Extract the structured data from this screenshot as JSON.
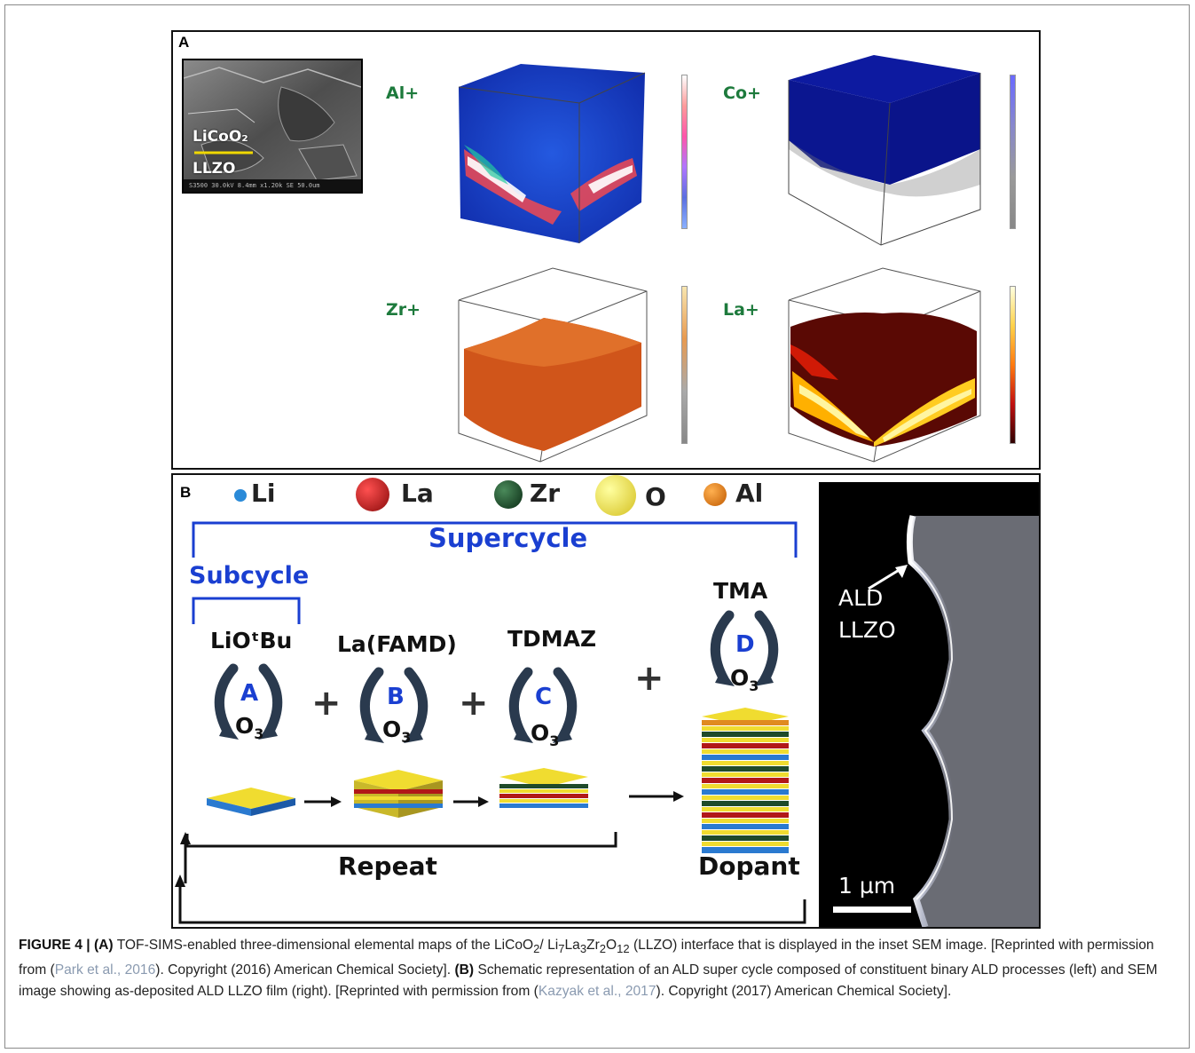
{
  "panel_a": {
    "letter": "A",
    "sem_inset": {
      "layer_top": "LiCoO₂",
      "layer_bottom": "LLZO",
      "scale_text": "S3500 30.0kV 8.4mm x1.20k SE 50.0um"
    },
    "maps": [
      {
        "label": "Al+",
        "cube_color": "#1b3fd0"
      },
      {
        "label": "Co+",
        "cube_color": "#0c1a9c"
      },
      {
        "label": "Zr+",
        "cube_color": "#cf5a1a"
      },
      {
        "label": "La+",
        "cube_color": "#5a0a04"
      }
    ]
  },
  "panel_b": {
    "letter": "B",
    "legend": [
      {
        "label": "Li",
        "color": "#2a8ad8"
      },
      {
        "label": "La",
        "color": "#b11818"
      },
      {
        "label": "Zr",
        "color": "#1f4a2a"
      },
      {
        "label": "O",
        "color": "#f2e04a"
      },
      {
        "label": "Al",
        "color": "#e08a20"
      }
    ],
    "supercycle": "Supercycle",
    "subcycle": "Subcycle",
    "cycles": [
      {
        "precursor": "LiOᵗBu",
        "letter": "A",
        "oxidant": "O",
        "oxidant_sub": "3"
      },
      {
        "precursor": "La(FAMD)",
        "letter": "B",
        "oxidant": "O",
        "oxidant_sub": "3"
      },
      {
        "precursor": "TDMAZ",
        "letter": "C",
        "oxidant": "O",
        "oxidant_sub": "3"
      },
      {
        "precursor": "TMA",
        "letter": "D",
        "oxidant": "O",
        "oxidant_sub": "3"
      }
    ],
    "plus": "+",
    "repeat": "Repeat",
    "dopant": "Dopant",
    "sem": {
      "label_line1": "ALD",
      "label_line2": "LLZO",
      "scale": "1 µm"
    }
  },
  "caption": {
    "figure_label": "FIGURE 4 |",
    "a_label": "(A)",
    "a_text_1": "TOF-SIMS-enabled three-dimensional elemental maps of the LiCoO",
    "a_sub_1": "2",
    "a_text_2": "/ Li",
    "a_sub_2": "7",
    "a_text_3": "La",
    "a_sub_3": "3",
    "a_text_4": "Zr",
    "a_sub_4": "2",
    "a_text_5": "O",
    "a_sub_5": "12",
    "a_text_6": " (LLZO) interface that is displayed in the inset SEM image. [Reprinted with permission from (",
    "ref_a": "Park et al., 2016",
    "a_text_7": "). Copyright (2016) American Chemical Society].",
    "b_label": "(B)",
    "b_text_1": "Schematic representation of an ALD super cycle composed of constituent binary ALD processes (left) and SEM image showing as-deposited ALD LLZO film (right). [Reprinted with permission from (",
    "ref_b": "Kazyak et al., 2017",
    "b_text_2": "). Copyright (2017) American Chemical Society]."
  }
}
